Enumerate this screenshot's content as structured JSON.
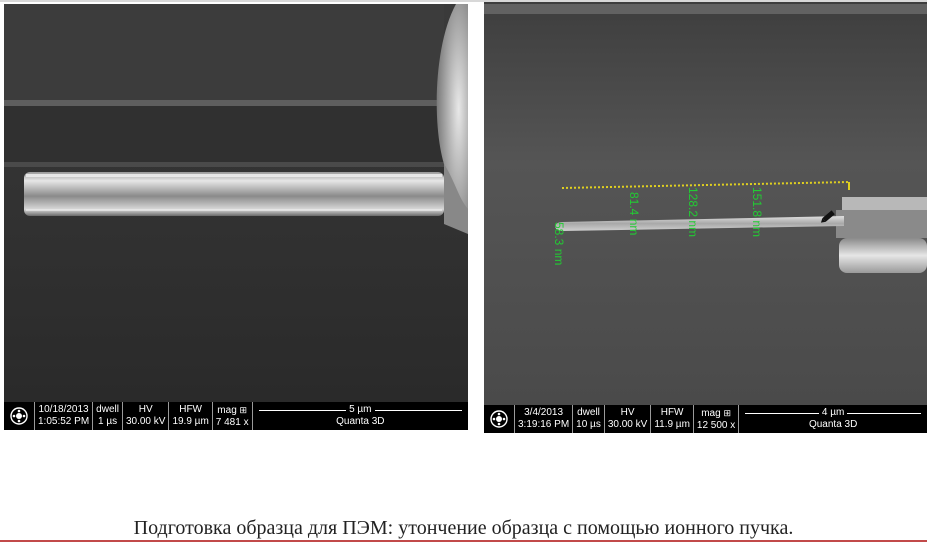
{
  "left_image": {
    "databar": {
      "date": "10/18/2013",
      "time": "1:05:52 PM",
      "dwell_label": "dwell",
      "dwell_value": "1 µs",
      "hv_label": "HV",
      "hv_value": "30.00 kV",
      "hfw_label": "HFW",
      "hfw_value": "19.9 µm",
      "mag_label": "mag",
      "mag_icon": "grid-icon",
      "mag_value": "7 481 x",
      "scale_label": "5 µm",
      "instrument": "Quanta 3D"
    }
  },
  "right_image": {
    "measurements": [
      "58.3 nm",
      "81.4 nm",
      "128.2 nm",
      "151.8 nm"
    ],
    "measurement_color": "#22cc33",
    "databar": {
      "date": "3/4/2013",
      "time": "3:19:16 PM",
      "dwell_label": "dwell",
      "dwell_value": "10 µs",
      "hv_label": "HV",
      "hv_value": "30.00 kV",
      "hfw_label": "HFW",
      "hfw_value": "11.9 µm",
      "mag_label": "mag",
      "mag_icon": "grid-icon",
      "mag_value": "12 500 x",
      "scale_label": "4 µm",
      "instrument": "Quanta 3D"
    }
  },
  "caption": "Подготовка образца для ПЭМ: утончение образца с помощью ионного пучка."
}
